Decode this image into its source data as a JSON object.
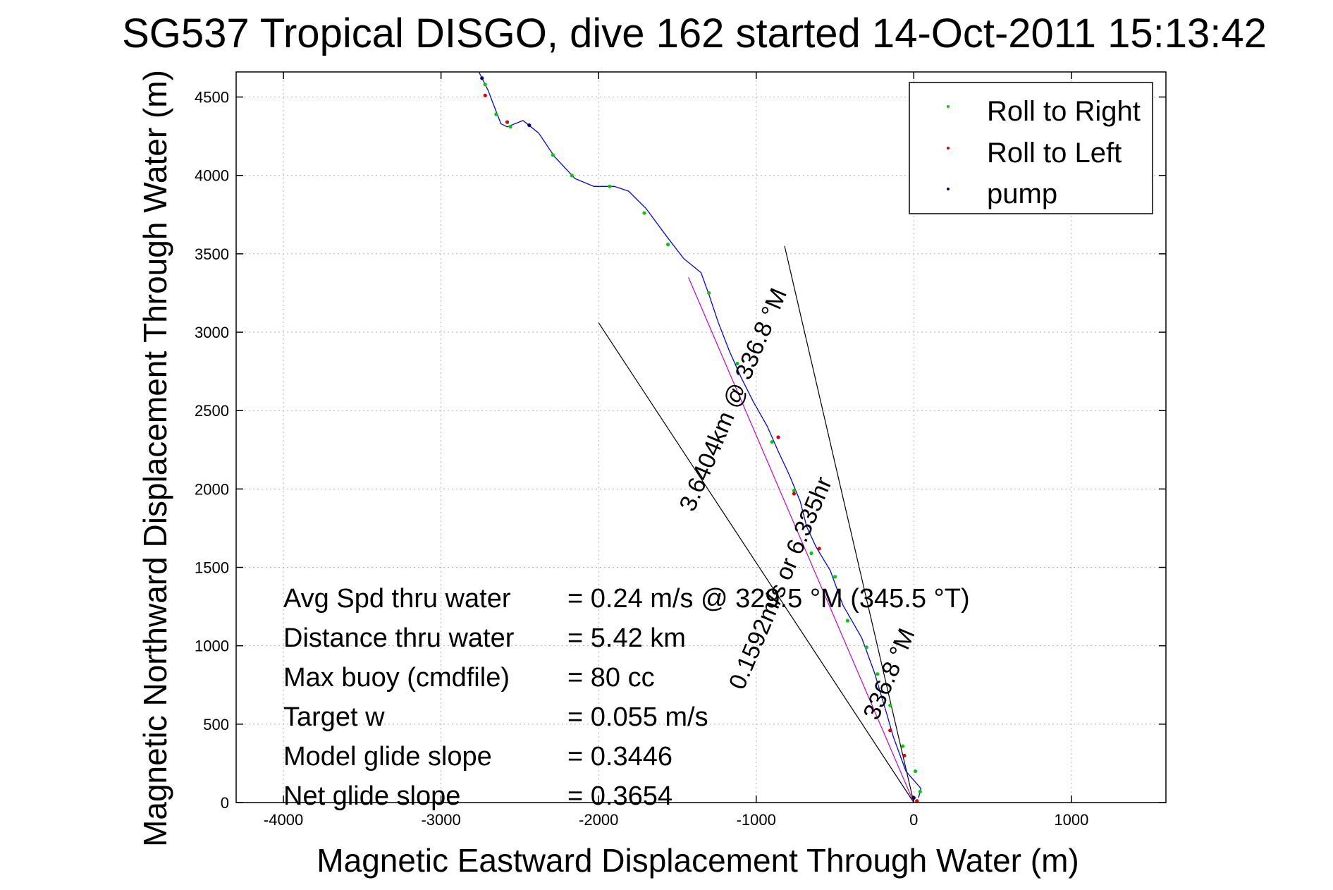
{
  "chart_data": {
    "type": "scatter",
    "title": "SG537 Tropical DISGO, dive 162 started 14-Oct-2011 15:13:42",
    "xlabel": "Magnetic Eastward Displacement Through Water (m)",
    "ylabel": "Magnetic Northward Displacement Through Water (m)",
    "xlim": [
      -4300,
      1600
    ],
    "ylim": [
      0,
      4660
    ],
    "xticks": [
      -4000,
      -3000,
      -2000,
      -1000,
      0,
      1000
    ],
    "xtick_labels": [
      "-4000",
      "-3000",
      "-2000",
      "-1000",
      "0",
      "1000"
    ],
    "yticks": [
      0,
      500,
      1000,
      1500,
      2000,
      2500,
      3000,
      3500,
      4000,
      4500
    ],
    "ytick_labels": [
      "0",
      "500",
      "1000",
      "1500",
      "2000",
      "2500",
      "3000",
      "3500",
      "4000",
      "4500"
    ],
    "grid": true,
    "legend_position": "top-right",
    "legend": [
      {
        "name": "Roll to Right",
        "color": "#00cc00"
      },
      {
        "name": "Roll to Left",
        "color": "#dd0000"
      },
      {
        "name": "pump",
        "color": "#000066"
      }
    ],
    "track": {
      "name": "glider track",
      "color": "#0000ff",
      "points": [
        [
          30,
          30
        ],
        [
          45,
          90
        ],
        [
          -50,
          200
        ],
        [
          -130,
          420
        ],
        [
          -170,
          560
        ],
        [
          -250,
          830
        ],
        [
          -330,
          1050
        ],
        [
          -450,
          1260
        ],
        [
          -530,
          1480
        ],
        [
          -620,
          1630
        ],
        [
          -680,
          1760
        ],
        [
          -720,
          1920
        ],
        [
          -790,
          2090
        ],
        [
          -860,
          2240
        ],
        [
          -930,
          2400
        ],
        [
          -1020,
          2560
        ],
        [
          -1100,
          2720
        ],
        [
          -1170,
          2880
        ],
        [
          -1240,
          3060
        ],
        [
          -1300,
          3240
        ],
        [
          -1350,
          3380
        ],
        [
          -1460,
          3470
        ],
        [
          -1560,
          3600
        ],
        [
          -1700,
          3790
        ],
        [
          -1810,
          3900
        ],
        [
          -1900,
          3930
        ],
        [
          -2030,
          3930
        ],
        [
          -2150,
          3980
        ],
        [
          -2280,
          4120
        ],
        [
          -2380,
          4270
        ],
        [
          -2480,
          4350
        ],
        [
          -2580,
          4310
        ],
        [
          -2620,
          4330
        ],
        [
          -2670,
          4460
        ],
        [
          -2700,
          4540
        ],
        [
          -2760,
          4660
        ]
      ]
    },
    "roll_right": [
      [
        40,
        70
      ],
      [
        10,
        200
      ],
      [
        -70,
        360
      ],
      [
        -150,
        620
      ],
      [
        -230,
        820
      ],
      [
        -300,
        990
      ],
      [
        -420,
        1160
      ],
      [
        -500,
        1440
      ],
      [
        -650,
        1590
      ],
      [
        -760,
        1990
      ],
      [
        -900,
        2300
      ],
      [
        -1120,
        2800
      ],
      [
        -1300,
        3250
      ],
      [
        -1560,
        3560
      ],
      [
        -1710,
        3760
      ],
      [
        -1930,
        3930
      ],
      [
        -2170,
        4000
      ],
      [
        -2290,
        4130
      ],
      [
        -2560,
        4310
      ],
      [
        -2650,
        4390
      ],
      [
        -2720,
        4580
      ]
    ],
    "roll_left": [
      [
        20,
        10
      ],
      [
        -60,
        300
      ],
      [
        -150,
        460
      ],
      [
        -600,
        1620
      ],
      [
        -760,
        1970
      ],
      [
        -860,
        2330
      ],
      [
        -2580,
        4340
      ],
      [
        -2720,
        4510
      ]
    ],
    "pump": [
      [
        0,
        30
      ],
      [
        -2440,
        4320
      ],
      [
        -2740,
        4620
      ]
    ],
    "desired_course_line": {
      "color": "#cc00cc",
      "points": [
        [
          0,
          0
        ],
        [
          -1430,
          3350
        ]
      ]
    },
    "reference_lines": [
      {
        "color": "#000000",
        "points": [
          [
            0,
            0
          ],
          [
            -2000,
            3060
          ]
        ]
      },
      {
        "color": "#000000",
        "points": [
          [
            0,
            0
          ],
          [
            -820,
            3550
          ]
        ]
      }
    ],
    "annotations": [
      {
        "text": "3.6404km @ 336.8 °M",
        "rotation": -67
      },
      {
        "text": "0.1592m/s or 6.335hr",
        "rotation": -67
      },
      {
        "text": "336.8 °M",
        "rotation": -67
      }
    ]
  },
  "stats": [
    {
      "label": "Avg Spd thru water",
      "value": "=  0.24 m/s @ 329.5 °M (345.5 °T)"
    },
    {
      "label": "Distance thru water",
      "value": "=  5.42 km"
    },
    {
      "label": "Max buoy (cmdfile)",
      "value": "= 80 cc"
    },
    {
      "label": "Target w",
      "value": "= 0.055 m/s"
    },
    {
      "label": "Model glide slope",
      "value": "= 0.3446"
    },
    {
      "label": "Net glide slope",
      "value": "= 0.3654"
    }
  ]
}
